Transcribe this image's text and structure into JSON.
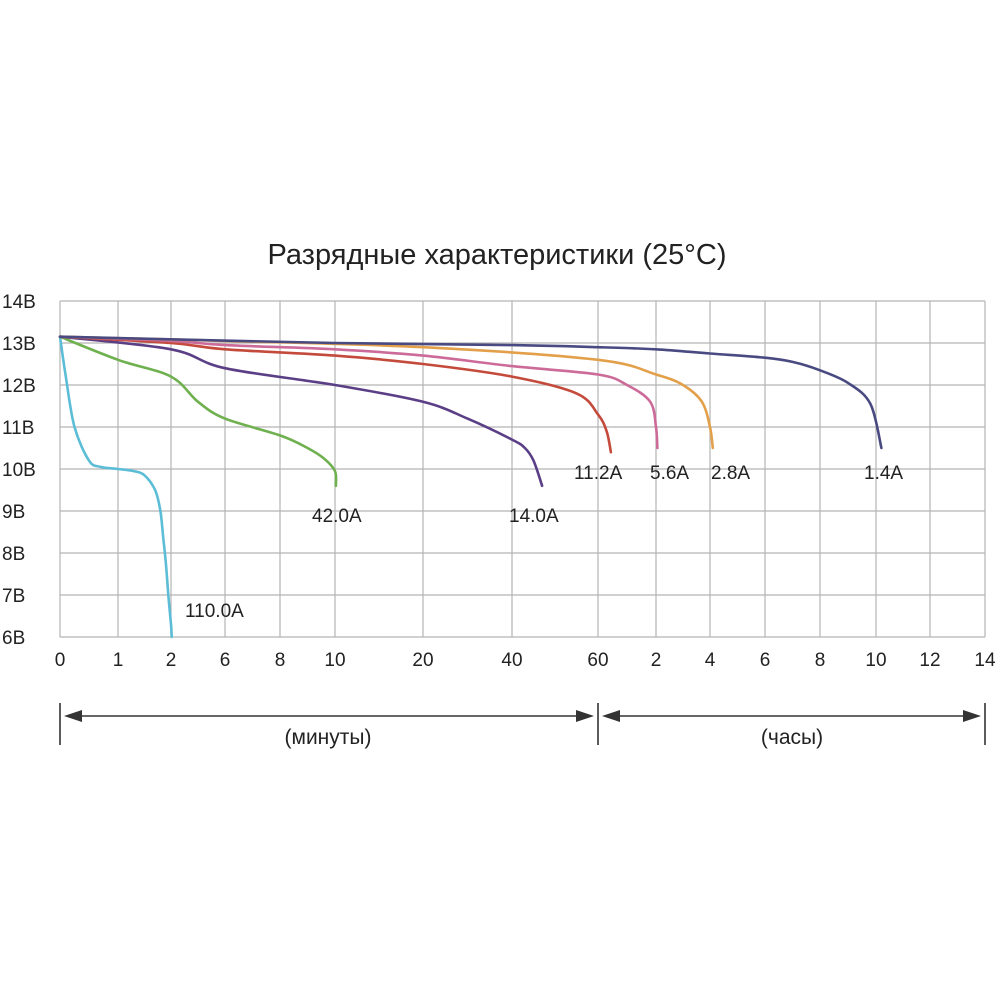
{
  "chart_data": {
    "type": "line",
    "title": "Разрядные характеристики (25°C)",
    "y_ticks": [
      "6В",
      "7В",
      "8В",
      "9В",
      "10В",
      "11В",
      "12В",
      "13В",
      "14В"
    ],
    "y_values": [
      6,
      7,
      8,
      9,
      10,
      11,
      12,
      13,
      14
    ],
    "ylim": [
      6,
      14
    ],
    "x_ticks": [
      "0",
      "1",
      "2",
      "6",
      "8",
      "10",
      "20",
      "40",
      "60",
      "2",
      "4",
      "6",
      "8",
      "10",
      "12",
      "14"
    ],
    "grid": true,
    "x_units": {
      "minutes_label": "(минуты)",
      "hours_label": "(часы)"
    },
    "series": [
      {
        "name": "110.0А",
        "color": "#5bbdd6",
        "x_minutes": [
          0,
          0.1,
          0.25,
          0.5,
          0.7,
          1.0,
          1.3,
          1.5,
          1.7,
          1.8,
          1.85,
          1.9,
          1.95,
          2.0,
          2.05
        ],
        "y": [
          13.15,
          12.2,
          11.0,
          10.2,
          10.05,
          10.0,
          9.95,
          9.85,
          9.5,
          9.0,
          8.4,
          7.8,
          7.0,
          6.3,
          6.0
        ]
      },
      {
        "name": "42.0А",
        "color": "#6fb04f",
        "x_minutes": [
          0,
          1,
          2,
          4,
          6,
          8,
          9,
          9.6,
          10,
          10.1
        ],
        "y": [
          13.15,
          12.6,
          12.2,
          11.6,
          11.2,
          10.8,
          10.5,
          10.25,
          9.95,
          9.6
        ]
      },
      {
        "name": "14.0А",
        "color": "#5b3f86",
        "x_minutes": [
          0,
          2,
          6,
          10,
          20,
          30,
          40,
          43,
          45,
          47
        ],
        "y": [
          13.15,
          12.85,
          12.4,
          12.0,
          11.6,
          11.2,
          10.7,
          10.5,
          10.2,
          9.6
        ]
      },
      {
        "name": "11.2А",
        "color": "#c44a3c",
        "x_minutes": [
          0,
          2,
          6,
          10,
          20,
          40,
          55,
          60,
          62,
          63
        ],
        "y": [
          13.15,
          13.0,
          12.85,
          12.7,
          12.5,
          12.2,
          11.8,
          11.3,
          10.9,
          10.4
        ]
      },
      {
        "name": "5.6А",
        "color": "#cc6b99",
        "x_hours": [
          0,
          0.0333,
          0.1,
          0.1667,
          0.3333,
          0.6667,
          1.0,
          1.5,
          1.9,
          2.0,
          2.05
        ],
        "y": [
          13.15,
          13.05,
          12.95,
          12.85,
          12.7,
          12.45,
          12.25,
          12.0,
          11.6,
          11.0,
          10.5
        ]
      },
      {
        "name": "2.8А",
        "color": "#e3a04a",
        "x_hours": [
          0,
          0.1,
          0.3333,
          1.0,
          2.0,
          3.0,
          3.7,
          4.0,
          4.1
        ],
        "y": [
          13.15,
          13.05,
          12.9,
          12.6,
          12.25,
          12.0,
          11.6,
          11.0,
          10.5
        ]
      },
      {
        "name": "1.4А",
        "color": "#4a4a82",
        "x_hours": [
          0,
          0.1667,
          0.6667,
          1.0,
          2.0,
          4.0,
          6.0,
          7.0,
          8.0,
          9.0,
          9.8,
          10.2
        ],
        "y": [
          13.15,
          13.0,
          12.95,
          12.9,
          12.85,
          12.75,
          12.65,
          12.55,
          12.35,
          12.05,
          11.55,
          10.5
        ]
      }
    ]
  }
}
